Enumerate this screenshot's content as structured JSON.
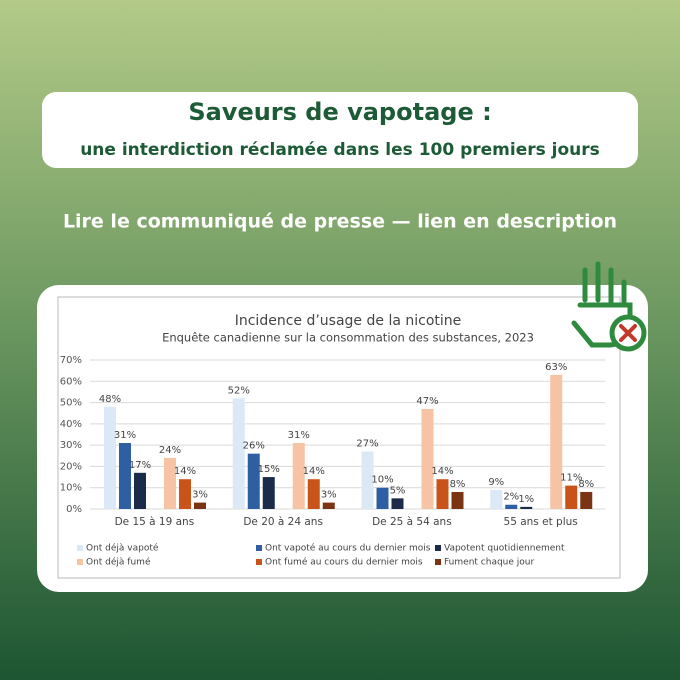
{
  "header": {
    "title": "Saveurs de vapotage :",
    "subtitle": "une interdiction réclamée dans les 100 premiers jours",
    "link_text": "Lire le communiqué de presse — lien en description"
  },
  "chart_data": {
    "type": "bar",
    "title": "Incidence d’usage de la nicotine",
    "subtitle": "Enquête canadienne sur la consommation des substances, 2023",
    "categories": [
      "De 15 à 19 ans",
      "De 20 à 24 ans",
      "De 25 à 54 ans",
      "55 ans et plus"
    ],
    "series": [
      {
        "name": "Ont déjà vapoté",
        "color": "#dbe8f6",
        "values": [
          48,
          52,
          27,
          9
        ],
        "value_labels": [
          "48%",
          "52%",
          "27%",
          "9%"
        ]
      },
      {
        "name": "Ont vapoté au cours du dernier mois",
        "color": "#2e5fa3",
        "values": [
          31,
          26,
          10,
          2
        ],
        "value_labels": [
          "31%",
          "26%",
          "10%",
          "2%"
        ]
      },
      {
        "name": "Vapotent quotidiennement",
        "color": "#1b2c4a",
        "values": [
          17,
          15,
          5,
          1
        ],
        "value_labels": [
          "17%",
          "15%",
          "5%",
          "1%"
        ]
      },
      {
        "name": "Ont déjà fumé",
        "color": "#f6c3a5",
        "values": [
          24,
          31,
          47,
          63
        ],
        "value_labels": [
          "24%",
          "31%",
          "47%",
          "63%"
        ]
      },
      {
        "name": "Ont fumé au cours du dernier mois",
        "color": "#c9541a",
        "values": [
          14,
          14,
          14,
          11
        ],
        "value_labels": [
          "14%",
          "14%",
          "14%",
          "11%"
        ]
      },
      {
        "name": "Fument chaque jour",
        "color": "#7a3414",
        "values": [
          3,
          3,
          8,
          8
        ],
        "value_labels": [
          "3%",
          "3%",
          "8%",
          "8%"
        ]
      }
    ],
    "ylim": [
      0,
      70
    ],
    "yticks": [
      {
        "value": 0,
        "label": "0%"
      },
      {
        "value": 10,
        "label": "10%"
      },
      {
        "value": 20,
        "label": "20%"
      },
      {
        "value": 30,
        "label": "30%"
      },
      {
        "value": 40,
        "label": "40%"
      },
      {
        "value": 50,
        "label": "50%"
      },
      {
        "value": 60,
        "label": "60%"
      },
      {
        "value": 70,
        "label": "70%"
      }
    ],
    "grid": true,
    "legend": "bottom"
  }
}
